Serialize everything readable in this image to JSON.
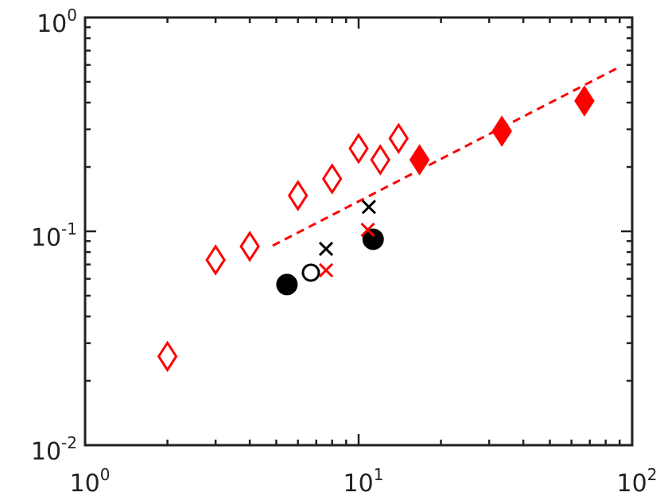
{
  "chart_data": {
    "type": "scatter",
    "xlim": [
      1,
      100
    ],
    "ylim": [
      0.01,
      1
    ],
    "xlog": true,
    "ylog": true,
    "minor_ticks": true,
    "xticks": [
      {
        "value": 1,
        "label": "10",
        "power": "0"
      },
      {
        "value": 10,
        "label": "10",
        "power": "1"
      },
      {
        "value": 100,
        "label": "10",
        "power": "2"
      }
    ],
    "yticks": [
      {
        "value": 0.01,
        "label": "10",
        "power": "-2"
      },
      {
        "value": 0.1,
        "label": "10",
        "power": "-1"
      },
      {
        "value": 1,
        "label": "10",
        "power": "0"
      }
    ],
    "series": [
      {
        "marker": "diamond",
        "filled": false,
        "color": "#ff0000",
        "x": [
          2,
          3,
          4,
          6,
          8,
          10,
          12,
          14
        ],
        "values": [
          0.026,
          0.0735,
          0.085,
          0.147,
          0.176,
          0.244,
          0.216,
          0.272
        ]
      },
      {
        "marker": "diamond",
        "filled": true,
        "color": "#ff0000",
        "x": [
          16.7,
          33.4,
          66.9
        ],
        "values": [
          0.216,
          0.294,
          0.407
        ]
      },
      {
        "marker": "circle",
        "filled": true,
        "color": "#000000",
        "x": [
          5.47,
          11.3
        ],
        "values": [
          0.0564,
          0.0918
        ]
      },
      {
        "marker": "circle",
        "filled": false,
        "color": "#000000",
        "x": [
          6.69
        ],
        "values": [
          0.0641
        ]
      },
      {
        "marker": "cross",
        "filled": false,
        "color": "#000000",
        "x": [
          7.6,
          10.9
        ],
        "values": [
          0.0828,
          0.13
        ]
      },
      {
        "marker": "cross",
        "filled": false,
        "color": "#ff0000",
        "x": [
          7.6,
          10.8
        ],
        "values": [
          0.0658,
          0.1017
        ]
      },
      {
        "marker": "line",
        "style": "dashed",
        "color": "#ff0000",
        "x": [
          4.85,
          90.4
        ],
        "values": [
          0.0857,
          0.589
        ]
      }
    ]
  }
}
